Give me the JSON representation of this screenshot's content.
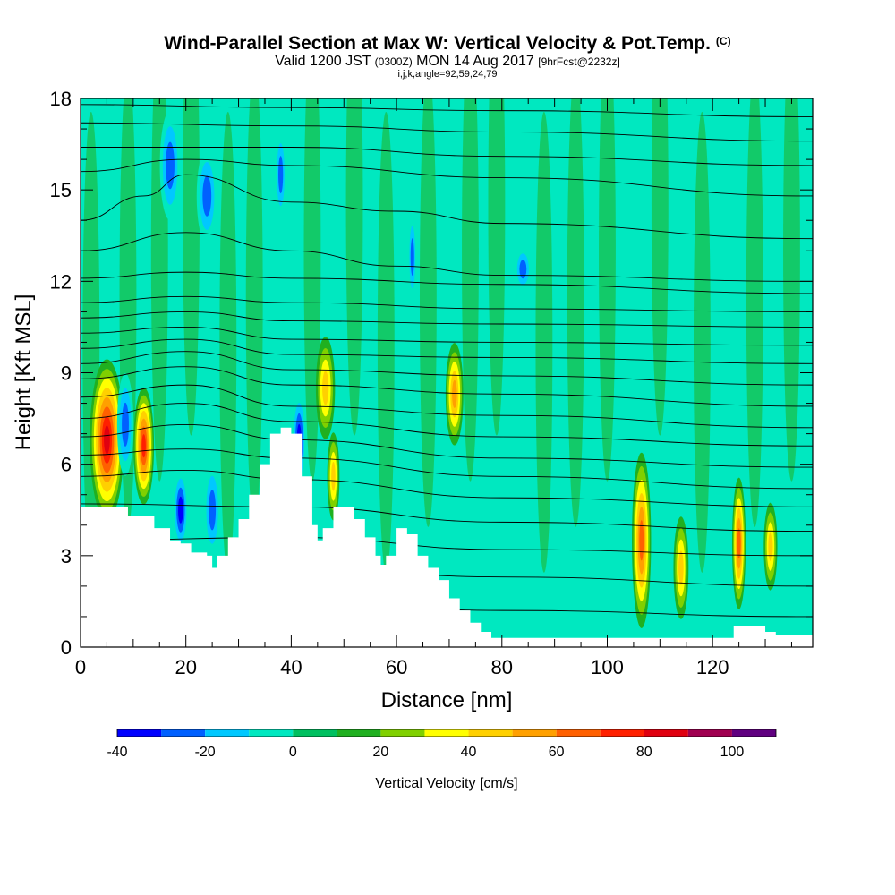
{
  "title": "Wind-Parallel Section at Max W: Vertical Velocity & Pot.Temp.",
  "title_mark": "(C)",
  "subtitle_main_a": "Valid 1200 JST",
  "subtitle_small_a": "(0300Z)",
  "subtitle_main_b": "MON 14 Aug 2017",
  "subtitle_small_b": "[9hrFcst@2232z]",
  "subtitle_line3": "i,j,k,angle=92,59,24,79",
  "chart_data": {
    "type": "heatmap",
    "xlabel": "Distance [nm]",
    "ylabel": "Height [Kft MSL]",
    "xlim": [
      0,
      139
    ],
    "ylim": [
      0,
      18
    ],
    "x_ticks": [
      "0",
      "20",
      "40",
      "60",
      "80",
      "100",
      "120"
    ],
    "y_ticks": [
      "0",
      "3",
      "6",
      "9",
      "12",
      "15",
      "18"
    ],
    "x_tick_values": [
      0,
      20,
      40,
      60,
      80,
      100,
      120
    ],
    "y_tick_values": [
      0,
      3,
      6,
      9,
      12,
      15,
      18
    ],
    "colorbar": {
      "title": "Vertical Velocity [cm/s]",
      "tick_labels": [
        "-40",
        "-20",
        "0",
        "20",
        "40",
        "60",
        "80",
        "100"
      ],
      "tick_values": [
        -40,
        -20,
        0,
        20,
        40,
        60,
        80,
        100
      ],
      "range": [
        -40,
        110
      ],
      "levels": [
        -40,
        -30,
        -20,
        -10,
        0,
        10,
        20,
        30,
        40,
        50,
        60,
        70,
        80,
        90,
        100,
        110
      ],
      "colors": [
        "#0000ff",
        "#0060ff",
        "#00c8ff",
        "#00e8c0",
        "#00c060",
        "#20b020",
        "#80d000",
        "#ffff00",
        "#ffd000",
        "#ffa000",
        "#ff6000",
        "#ff2000",
        "#e00010",
        "#a00050",
        "#600080"
      ]
    },
    "background_value_color": "#00e8c0",
    "terrain_kft": [
      [
        0,
        4.6
      ],
      [
        5,
        4.6
      ],
      [
        8,
        4.6
      ],
      [
        9,
        4.3
      ],
      [
        13,
        4.3
      ],
      [
        14,
        3.9
      ],
      [
        16,
        3.9
      ],
      [
        17,
        3.5
      ],
      [
        19,
        3.4
      ],
      [
        21,
        3.1
      ],
      [
        24,
        3.0
      ],
      [
        25,
        2.6
      ],
      [
        26,
        3.0
      ],
      [
        28,
        3.6
      ],
      [
        30,
        4.2
      ],
      [
        32,
        5.0
      ],
      [
        34,
        6.0
      ],
      [
        36,
        7.0
      ],
      [
        38,
        7.2
      ],
      [
        40,
        7.0
      ],
      [
        42,
        5.6
      ],
      [
        44,
        4.0
      ],
      [
        45,
        3.5
      ],
      [
        46,
        3.9
      ],
      [
        48,
        4.6
      ],
      [
        50,
        4.6
      ],
      [
        52,
        4.2
      ],
      [
        54,
        3.6
      ],
      [
        56,
        3.0
      ],
      [
        57,
        2.7
      ],
      [
        58,
        3.0
      ],
      [
        60,
        3.9
      ],
      [
        62,
        3.7
      ],
      [
        64,
        3.0
      ],
      [
        66,
        2.6
      ],
      [
        68,
        2.2
      ],
      [
        70,
        1.6
      ],
      [
        72,
        1.2
      ],
      [
        74,
        0.8
      ],
      [
        76,
        0.5
      ],
      [
        78,
        0.3
      ],
      [
        80,
        0.3
      ],
      [
        122,
        0.3
      ],
      [
        124,
        0.7
      ],
      [
        129,
        0.7
      ],
      [
        130,
        0.5
      ],
      [
        132,
        0.4
      ],
      [
        139,
        0.4
      ]
    ],
    "theta_contours_kft": [
      [
        [
          0,
          1.5
        ],
        [
          40,
          1.5
        ],
        [
          80,
          1.2
        ],
        [
          139,
          1.0
        ]
      ],
      [
        [
          0,
          2.5
        ],
        [
          40,
          2.6
        ],
        [
          80,
          2.3
        ],
        [
          139,
          2.0
        ]
      ],
      [
        [
          0,
          3.5
        ],
        [
          40,
          3.6
        ],
        [
          80,
          3.2
        ],
        [
          139,
          3.0
        ]
      ],
      [
        [
          0,
          4.7
        ],
        [
          40,
          4.6
        ],
        [
          80,
          4.1
        ],
        [
          139,
          3.8
        ]
      ],
      [
        [
          0,
          5.6
        ],
        [
          20,
          5.8
        ],
        [
          40,
          5.5
        ],
        [
          80,
          4.9
        ],
        [
          139,
          4.6
        ]
      ],
      [
        [
          0,
          6.3
        ],
        [
          20,
          6.5
        ],
        [
          40,
          6.2
        ],
        [
          80,
          5.6
        ],
        [
          139,
          5.2
        ]
      ],
      [
        [
          0,
          6.9
        ],
        [
          20,
          7.3
        ],
        [
          40,
          6.8
        ],
        [
          80,
          6.2
        ],
        [
          139,
          5.9
        ]
      ],
      [
        [
          0,
          7.5
        ],
        [
          20,
          8.0
        ],
        [
          40,
          7.4
        ],
        [
          80,
          6.9
        ],
        [
          139,
          6.6
        ]
      ],
      [
        [
          0,
          8.2
        ],
        [
          20,
          8.6
        ],
        [
          40,
          7.9
        ],
        [
          80,
          7.6
        ],
        [
          139,
          7.2
        ]
      ],
      [
        [
          0,
          8.8
        ],
        [
          20,
          9.2
        ],
        [
          40,
          8.6
        ],
        [
          80,
          8.3
        ],
        [
          139,
          7.9
        ]
      ],
      [
        [
          0,
          9.3
        ],
        [
          20,
          9.7
        ],
        [
          40,
          9.1
        ],
        [
          80,
          8.9
        ],
        [
          139,
          8.6
        ]
      ],
      [
        [
          0,
          9.8
        ],
        [
          20,
          10.1
        ],
        [
          40,
          9.6
        ],
        [
          80,
          9.5
        ],
        [
          139,
          9.3
        ]
      ],
      [
        [
          0,
          10.3
        ],
        [
          20,
          10.5
        ],
        [
          40,
          10.1
        ],
        [
          80,
          10.0
        ],
        [
          139,
          9.9
        ]
      ],
      [
        [
          0,
          10.8
        ],
        [
          20,
          11.0
        ],
        [
          40,
          10.7
        ],
        [
          80,
          10.6
        ],
        [
          139,
          10.5
        ]
      ],
      [
        [
          0,
          11.3
        ],
        [
          20,
          11.5
        ],
        [
          40,
          11.3
        ],
        [
          80,
          11.1
        ],
        [
          139,
          11.0
        ]
      ],
      [
        [
          0,
          12.1
        ],
        [
          20,
          12.3
        ],
        [
          40,
          12.1
        ],
        [
          80,
          11.9
        ],
        [
          139,
          11.6
        ]
      ],
      [
        [
          0,
          13.0
        ],
        [
          20,
          13.6
        ],
        [
          40,
          13.0
        ],
        [
          60,
          12.5
        ],
        [
          80,
          12.2
        ],
        [
          139,
          12.0
        ]
      ],
      [
        [
          0,
          14.0
        ],
        [
          12,
          14.8
        ],
        [
          20,
          15.5
        ],
        [
          40,
          14.6
        ],
        [
          60,
          14.3
        ],
        [
          80,
          13.9
        ],
        [
          139,
          13.4
        ]
      ],
      [
        [
          0,
          15.6
        ],
        [
          20,
          16.0
        ],
        [
          40,
          15.8
        ],
        [
          80,
          15.4
        ],
        [
          139,
          14.8
        ]
      ],
      [
        [
          0,
          16.4
        ],
        [
          40,
          16.4
        ],
        [
          80,
          16.1
        ],
        [
          139,
          15.8
        ]
      ],
      [
        [
          0,
          17.2
        ],
        [
          40,
          17.1
        ],
        [
          80,
          16.9
        ],
        [
          139,
          16.6
        ]
      ],
      [
        [
          0,
          17.8
        ],
        [
          40,
          17.7
        ],
        [
          80,
          17.6
        ],
        [
          139,
          17.4
        ]
      ]
    ],
    "w_cells": [
      {
        "x": 5,
        "y": 6.8,
        "rx": 2.5,
        "ry": 2.2,
        "w": 80
      },
      {
        "x": 12,
        "y": 6.6,
        "rx": 1.5,
        "ry": 1.6,
        "w": 70
      },
      {
        "x": 8.5,
        "y": 7.3,
        "rx": 1.2,
        "ry": 1.4,
        "w": -30
      },
      {
        "x": 17,
        "y": 15.8,
        "rx": 1.5,
        "ry": 1.5,
        "w": -30
      },
      {
        "x": 24,
        "y": 14.8,
        "rx": 1.5,
        "ry": 1.3,
        "w": -30
      },
      {
        "x": 19,
        "y": 4.5,
        "rx": 1.1,
        "ry": 1.1,
        "w": -40
      },
      {
        "x": 25,
        "y": 4.5,
        "rx": 1.2,
        "ry": 1.3,
        "w": -30
      },
      {
        "x": 38,
        "y": 15.5,
        "rx": 0.8,
        "ry": 1.2,
        "w": -30
      },
      {
        "x": 41.5,
        "y": 6.8,
        "rx": 1.0,
        "ry": 1.3,
        "w": -40
      },
      {
        "x": 46.5,
        "y": 8.5,
        "rx": 1.4,
        "ry": 1.4,
        "w": 40
      },
      {
        "x": 48,
        "y": 5.6,
        "rx": 0.9,
        "ry": 1.2,
        "w": 40
      },
      {
        "x": 63,
        "y": 12.8,
        "rx": 0.6,
        "ry": 1.2,
        "w": -30
      },
      {
        "x": 71,
        "y": 8.3,
        "rx": 1.3,
        "ry": 1.4,
        "w": 50
      },
      {
        "x": 84,
        "y": 12.4,
        "rx": 1.2,
        "ry": 0.6,
        "w": -30
      },
      {
        "x": 106.5,
        "y": 3.5,
        "rx": 1.4,
        "ry": 2.4,
        "w": 60
      },
      {
        "x": 114,
        "y": 2.6,
        "rx": 1.1,
        "ry": 1.4,
        "w": 40
      },
      {
        "x": 125,
        "y": 3.4,
        "rx": 1.0,
        "ry": 1.8,
        "w": 60
      },
      {
        "x": 131,
        "y": 3.3,
        "rx": 1.0,
        "ry": 1.2,
        "w": 40
      }
    ]
  }
}
